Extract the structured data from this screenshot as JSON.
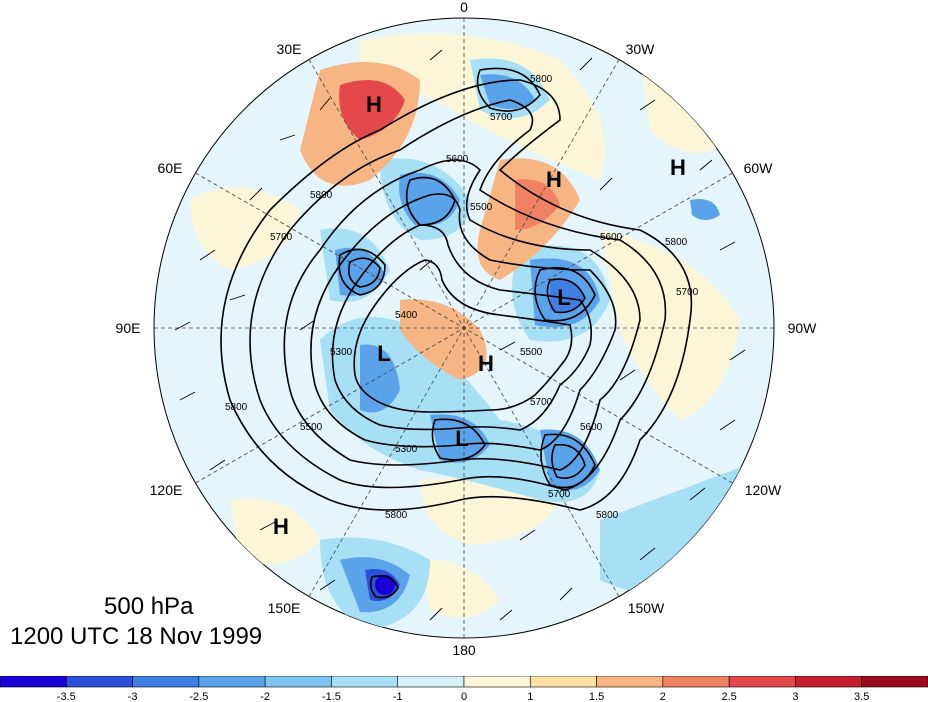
{
  "title": {
    "level": "500 hPa",
    "time": "1200 UTC 18 Nov 1999"
  },
  "longitude_labels": [
    {
      "id": "lon-0",
      "text": "0"
    },
    {
      "id": "lon-30w",
      "text": "30W"
    },
    {
      "id": "lon-60w",
      "text": "60W"
    },
    {
      "id": "lon-90w",
      "text": "90W"
    },
    {
      "id": "lon-120w",
      "text": "120W"
    },
    {
      "id": "lon-150w",
      "text": "150W"
    },
    {
      "id": "lon-180",
      "text": "180"
    },
    {
      "id": "lon-150e",
      "text": "150E"
    },
    {
      "id": "lon-120e",
      "text": "120E"
    },
    {
      "id": "lon-90e",
      "text": "90E"
    },
    {
      "id": "lon-60e",
      "text": "60E"
    },
    {
      "id": "lon-30e",
      "text": "30E"
    }
  ],
  "pressure_centers": [
    {
      "type": "H",
      "text": "H"
    },
    {
      "type": "H",
      "text": "H"
    },
    {
      "type": "H",
      "text": "H"
    },
    {
      "type": "H",
      "text": "H"
    },
    {
      "type": "H",
      "text": "H"
    },
    {
      "type": "L",
      "text": "L"
    },
    {
      "type": "L",
      "text": "L"
    },
    {
      "type": "L",
      "text": "L"
    }
  ],
  "contour_labels": [
    "5800",
    "5700",
    "5600",
    "5500",
    "5800",
    "5700",
    "5300",
    "5400",
    "5800",
    "5700",
    "5600",
    "5800",
    "5500",
    "5300",
    "5800",
    "5700",
    "5800",
    "5700",
    "5600",
    "5500"
  ],
  "colorbar": {
    "tick_labels": [
      "-3.5",
      "-3",
      "-2.5",
      "-2",
      "-1.5",
      "-1",
      "0",
      "1",
      "1.5",
      "2",
      "2.5",
      "3",
      "3.5"
    ],
    "colors": [
      "#1a00d6",
      "#2a4fd9",
      "#3f7ee3",
      "#5aa3ea",
      "#7fc4f0",
      "#a7e0f5",
      "#d5f2fa",
      "#fcf6d9",
      "#fbe1a4",
      "#f6b582",
      "#ef8262",
      "#e5484a",
      "#c41f2e",
      "#9c0a1e"
    ]
  },
  "anomaly_colors": {
    "strong_negative": "#2a4fd9",
    "negative": "#5aa3ea",
    "weak_negative": "#a7e0f5",
    "weak_positive": "#fcf6d9",
    "positive": "#f6b582",
    "strong_positive": "#e5484a"
  }
}
